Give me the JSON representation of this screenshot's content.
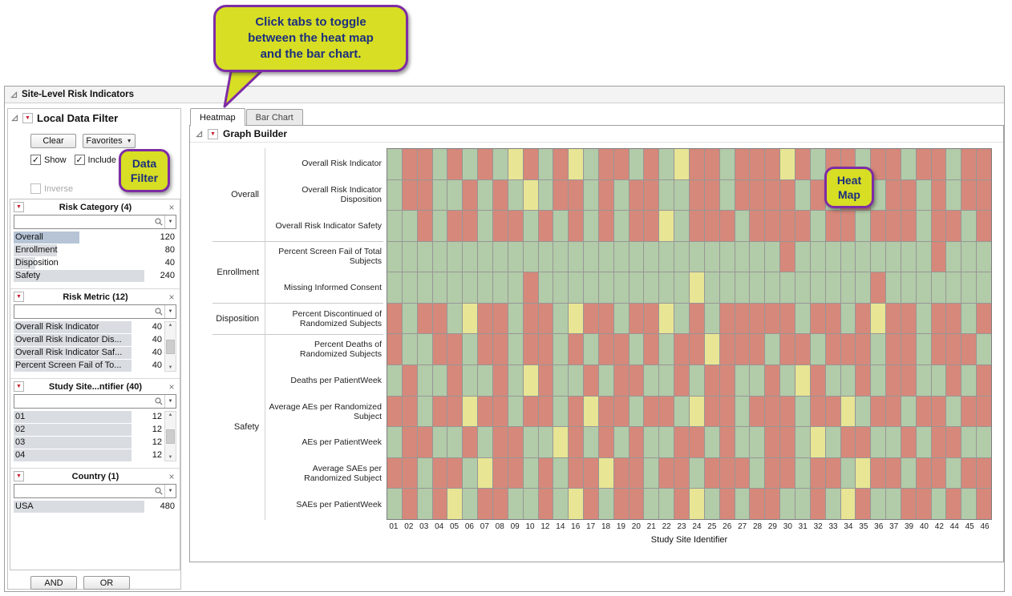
{
  "callouts": {
    "tabs_tip": "Click tabs to toggle\nbetween the heat map\nand the bar chart.",
    "data_filter": "Data\nFilter",
    "heat_map": "Heat\nMap",
    "fill_color": "#d7de23",
    "border_color": "#7e2ca6",
    "text_color": "#1d2f7e"
  },
  "window": {
    "title": "Site-Level Risk Indicators"
  },
  "data_filter": {
    "title": "Local Data Filter",
    "clear_label": "Clear",
    "favorites_label": "Favorites",
    "show_label": "Show",
    "include_label": "Include",
    "inverse_label": "Inverse",
    "and_label": "AND",
    "or_label": "OR",
    "groups": [
      {
        "title": "Risk Category (4)",
        "scrollbar": false,
        "items": [
          {
            "label": "Overall",
            "count": 120,
            "selected": true
          },
          {
            "label": "Enrollment",
            "count": 80,
            "selected": false
          },
          {
            "label": "Disposition",
            "count": 40,
            "selected": false
          },
          {
            "label": "Safety",
            "count": 240,
            "selected": false
          }
        ]
      },
      {
        "title": "Risk Metric (12)",
        "scrollbar": true,
        "items": [
          {
            "label": "Overall Risk Indicator",
            "count": 40,
            "selected": false
          },
          {
            "label": "Overall Risk Indicator Dis...",
            "count": 40,
            "selected": false
          },
          {
            "label": "Overall Risk Indicator Saf...",
            "count": 40,
            "selected": false
          },
          {
            "label": "Percent Screen Fail of To...",
            "count": 40,
            "selected": false
          }
        ]
      },
      {
        "title": "Study Site...ntifier (40)",
        "scrollbar": true,
        "items": [
          {
            "label": "01",
            "count": 12,
            "selected": false
          },
          {
            "label": "02",
            "count": 12,
            "selected": false
          },
          {
            "label": "03",
            "count": 12,
            "selected": false
          },
          {
            "label": "04",
            "count": 12,
            "selected": false
          }
        ]
      },
      {
        "title": "Country (1)",
        "scrollbar": false,
        "items": [
          {
            "label": "USA",
            "count": 480,
            "selected": false
          }
        ]
      }
    ]
  },
  "tabs": {
    "heatmap": "Heatmap",
    "bar_chart": "Bar Chart"
  },
  "graph_builder": {
    "title": "Graph Builder"
  },
  "chart_data": {
    "type": "heatmap",
    "x_axis_title": "Study Site Identifier",
    "x_labels": [
      "01",
      "02",
      "03",
      "04",
      "05",
      "06",
      "07",
      "08",
      "09",
      "10",
      "12",
      "14",
      "16",
      "17",
      "18",
      "19",
      "20",
      "21",
      "22",
      "23",
      "24",
      "25",
      "26",
      "27",
      "28",
      "29",
      "30",
      "31",
      "32",
      "33",
      "34",
      "35",
      "36",
      "37",
      "39",
      "40",
      "42",
      "44",
      "45",
      "46"
    ],
    "row_groups": [
      {
        "group": "Overall",
        "rows": [
          "Overall Risk Indicator",
          "Overall Risk Indicator Disposition",
          "Overall Risk Indicator Safety"
        ]
      },
      {
        "group": "Enrollment",
        "rows": [
          "Percent Screen Fail of Total Subjects",
          "Missing Informed Consent"
        ]
      },
      {
        "group": "Disposition",
        "rows": [
          "Percent Discontinued of Randomized Subjects"
        ]
      },
      {
        "group": "Safety",
        "rows": [
          "Percent Deaths of Randomized Subjects",
          "Deaths per PatientWeek",
          "Average AEs per Randomized Subject",
          "AEs per PatientWeek",
          "Average SAEs per Randomized Subject",
          "SAEs per PatientWeek"
        ]
      }
    ],
    "colors": {
      "R": "#D6887A",
      "G": "#B2CBA8",
      "Y": "#E8E594"
    },
    "cells": [
      "GRRGRGRGYRGRYGRRGRGYRRGRRRYRGRRGRRGRRGRR",
      "GRRGGRGRGYGRRGRGRRGGRRGRRRRGRGRRGRRGRGRR",
      "GGRGRRGRRGRGRGRGRRYGRRRGRRRRGRRGRRRGRRGR",
      "GGGGGGGGGGGGGGGGGGGGGGGGGGRGGGGGGGGGRGGG",
      "GGGGGGGGGRGGGGGGGGGGYGGGGGGGGGGGRGGGGGGG",
      "RGRRGYRRGRRGYRRGRRYGRGRRRRRGRRGRYRRGRRGR",
      "RGGRRGRRGRRGRGRRGRGRRYRRRGRRGRRRGRRGRRRG",
      "GRGGRGGRGYRGGRGRRGGRGRRGGRGYRGGRGRRGGRGR",
      "RRGRRYRRGRRGRYRRGRRGYRRGRRRGRRYGRRGRRGRR",
      "GRRGGRGRRGGYRGRGRGGRRGRGGRRGYGRRGGRGRRGG",
      "RRGRRGYRRGRGRRYRRGRRGRRRGRRGRRGYRRGRRGRR",
      "GRGRYGRRGGRGYRGRRGGRYGRGRRGGRGYRGGRRGRGR"
    ]
  }
}
